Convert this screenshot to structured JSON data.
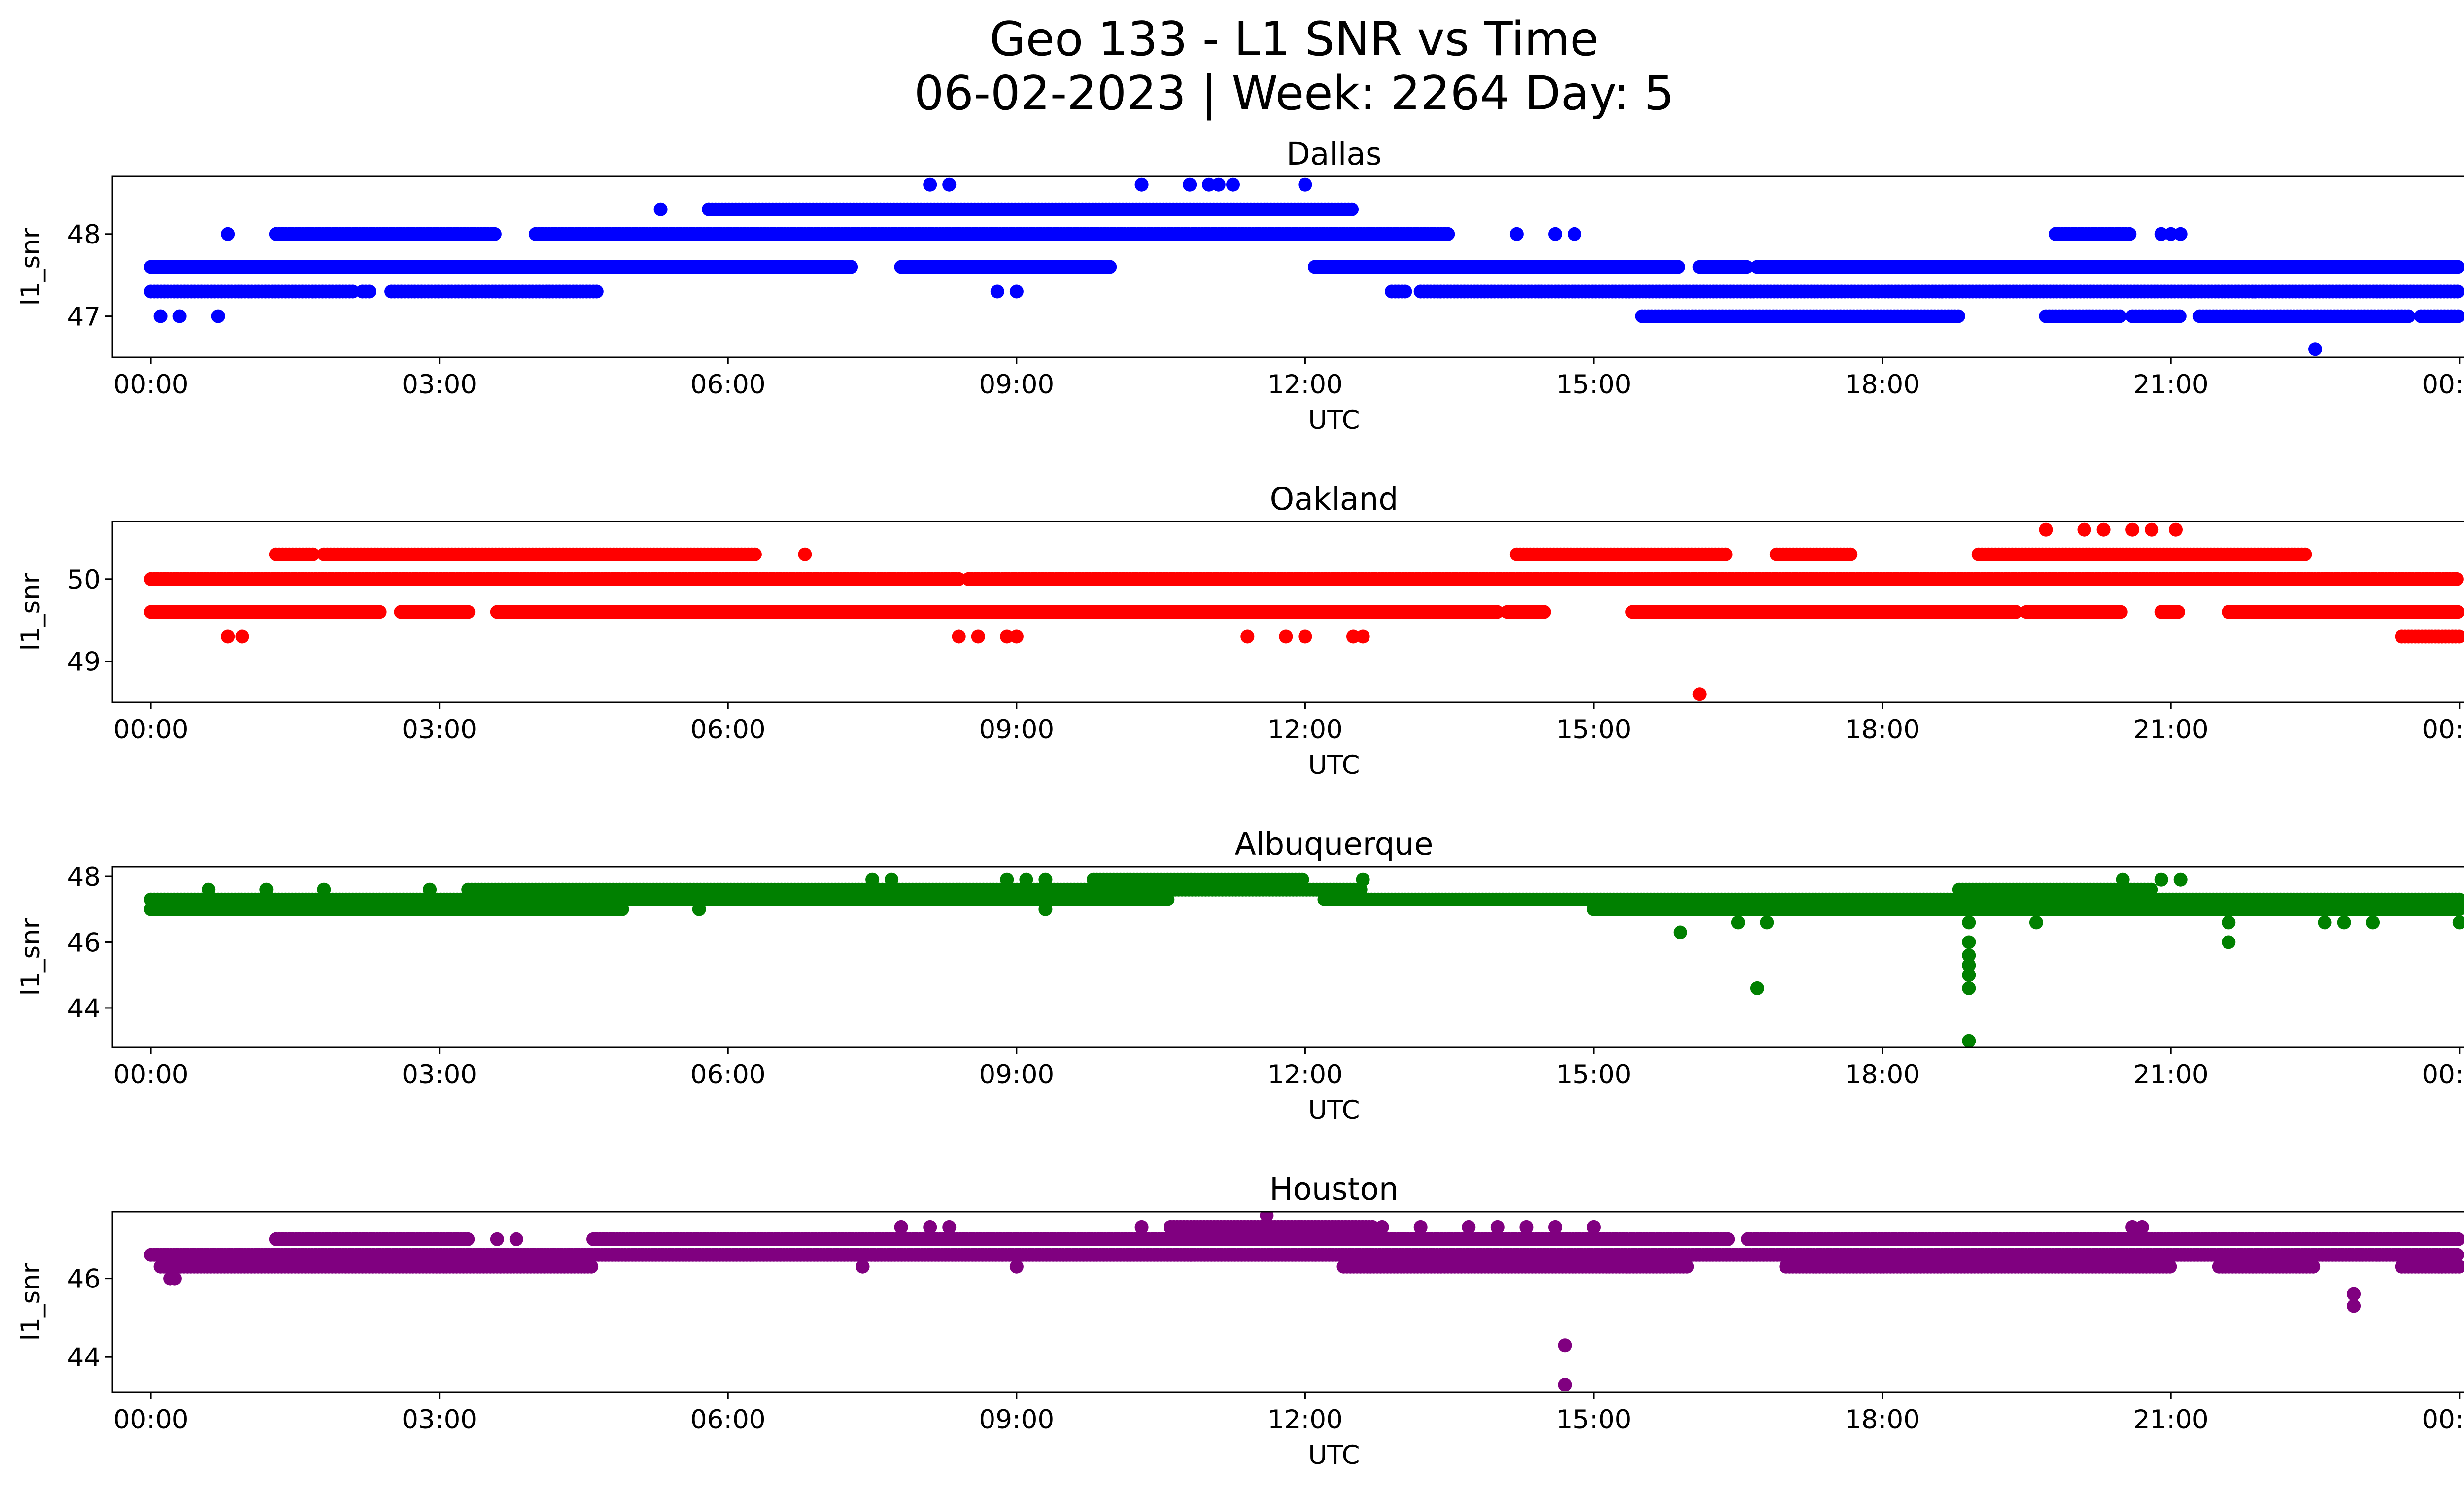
{
  "title_line1": "Geo 133 - L1 SNR vs Time",
  "title_line2": "06-02-2023 | Week: 2264 Day: 5",
  "chart_data": [
    {
      "type": "scatter",
      "title": "Dallas",
      "xlabel": "UTC",
      "ylabel": "l1_snr",
      "color": "#0000ff",
      "xlim": [
        -0.4,
        25.0
      ],
      "ylim": [
        46.5,
        48.7
      ],
      "xticks": [
        0,
        3,
        6,
        9,
        12,
        15,
        18,
        21,
        24
      ],
      "xtick_labels": [
        "00:00",
        "03:00",
        "06:00",
        "09:00",
        "12:00",
        "15:00",
        "18:00",
        "21:00",
        "00:00"
      ],
      "yticks": [
        47,
        48
      ],
      "ytick_labels": [
        "47",
        "48"
      ],
      "bands": [
        {
          "y": 47.3,
          "segments": [
            [
              0,
              2.1
            ],
            [
              2.2,
              2.3
            ],
            [
              2.5,
              4.65
            ],
            [
              12.9,
              13.05
            ],
            [
              13.2,
              24
            ]
          ]
        },
        {
          "y": 47.6,
          "segments": [
            [
              0,
              7.3
            ],
            [
              7.8,
              10.0
            ],
            [
              12.1,
              15.9
            ],
            [
              16.1,
              16.6
            ],
            [
              16.7,
              24
            ]
          ]
        },
        {
          "y": 48.0,
          "segments": [
            [
              1.3,
              3.6
            ],
            [
              4.0,
              13.5
            ],
            [
              19.8,
              20.6
            ]
          ]
        },
        {
          "y": 48.3,
          "segments": [
            [
              5.8,
              12.5
            ]
          ]
        },
        {
          "y": 47.0,
          "segments": [
            [
              15.5,
              18.8
            ],
            [
              19.7,
              20.5
            ],
            [
              20.6,
              21.1
            ],
            [
              21.3,
              23.5
            ],
            [
              23.6,
              24
            ]
          ]
        }
      ],
      "points": [
        {
          "x": 0.1,
          "y": 47.0
        },
        {
          "x": 0.3,
          "y": 47.0
        },
        {
          "x": 0.7,
          "y": 47.0
        },
        {
          "x": 0.8,
          "y": 48.0
        },
        {
          "x": 5.3,
          "y": 48.3
        },
        {
          "x": 5.8,
          "y": 48.3
        },
        {
          "x": 8.1,
          "y": 48.6
        },
        {
          "x": 8.3,
          "y": 48.6
        },
        {
          "x": 10.3,
          "y": 48.6
        },
        {
          "x": 10.8,
          "y": 48.6
        },
        {
          "x": 11.0,
          "y": 48.6
        },
        {
          "x": 11.1,
          "y": 48.6
        },
        {
          "x": 11.25,
          "y": 48.6
        },
        {
          "x": 12.0,
          "y": 48.6
        },
        {
          "x": 8.8,
          "y": 47.3
        },
        {
          "x": 9.0,
          "y": 47.3
        },
        {
          "x": 14.2,
          "y": 48.0
        },
        {
          "x": 14.6,
          "y": 48.0
        },
        {
          "x": 14.8,
          "y": 48.0
        },
        {
          "x": 20.9,
          "y": 48.0
        },
        {
          "x": 21.0,
          "y": 48.0
        },
        {
          "x": 21.1,
          "y": 48.0
        },
        {
          "x": 22.5,
          "y": 46.6
        }
      ]
    },
    {
      "type": "scatter",
      "title": "Oakland",
      "xlabel": "UTC",
      "ylabel": "l1_snr",
      "color": "#ff0000",
      "xlim": [
        -0.4,
        25.0
      ],
      "ylim": [
        48.5,
        50.7
      ],
      "xticks": [
        0,
        3,
        6,
        9,
        12,
        15,
        18,
        21,
        24
      ],
      "xtick_labels": [
        "00:00",
        "03:00",
        "06:00",
        "09:00",
        "12:00",
        "15:00",
        "18:00",
        "21:00",
        "00:00"
      ],
      "yticks": [
        49,
        50
      ],
      "ytick_labels": [
        "49",
        "50"
      ],
      "bands": [
        {
          "y": 50.0,
          "segments": [
            [
              0,
              8.4
            ],
            [
              8.5,
              24
            ]
          ]
        },
        {
          "y": 49.6,
          "segments": [
            [
              0,
              2.4
            ],
            [
              2.6,
              3.3
            ],
            [
              3.6,
              14.0
            ],
            [
              14.1,
              14.5
            ],
            [
              15.4,
              19.4
            ],
            [
              19.5,
              20.5
            ],
            [
              20.9,
              21.1
            ],
            [
              21.6,
              24
            ]
          ]
        },
        {
          "y": 50.3,
          "segments": [
            [
              1.3,
              1.7
            ],
            [
              1.8,
              6.3
            ],
            [
              14.2,
              16.4
            ],
            [
              16.9,
              17.7
            ],
            [
              19.0,
              22.4
            ]
          ]
        },
        {
          "y": 49.3,
          "segments": [
            [
              23.4,
              24
            ]
          ]
        }
      ],
      "points": [
        {
          "x": 0.8,
          "y": 49.3
        },
        {
          "x": 0.95,
          "y": 49.3
        },
        {
          "x": 6.8,
          "y": 50.3
        },
        {
          "x": 8.4,
          "y": 49.3
        },
        {
          "x": 8.6,
          "y": 49.3
        },
        {
          "x": 8.9,
          "y": 49.3
        },
        {
          "x": 9.0,
          "y": 49.3
        },
        {
          "x": 11.4,
          "y": 49.3
        },
        {
          "x": 11.8,
          "y": 49.3
        },
        {
          "x": 12.0,
          "y": 49.3
        },
        {
          "x": 12.5,
          "y": 49.3
        },
        {
          "x": 12.6,
          "y": 49.3
        },
        {
          "x": 16.1,
          "y": 48.6
        },
        {
          "x": 19.7,
          "y": 50.6
        },
        {
          "x": 20.1,
          "y": 50.6
        },
        {
          "x": 20.3,
          "y": 50.6
        },
        {
          "x": 20.6,
          "y": 50.6
        },
        {
          "x": 20.8,
          "y": 50.6
        },
        {
          "x": 21.05,
          "y": 50.6
        }
      ]
    },
    {
      "type": "scatter",
      "title": "Albuquerque",
      "xlabel": "UTC",
      "ylabel": "l1_snr",
      "color": "#008000",
      "xlim": [
        -0.4,
        25.0
      ],
      "ylim": [
        42.8,
        48.3
      ],
      "xticks": [
        0,
        3,
        6,
        9,
        12,
        15,
        18,
        21,
        24
      ],
      "xtick_labels": [
        "00:00",
        "03:00",
        "06:00",
        "09:00",
        "12:00",
        "15:00",
        "18:00",
        "21:00",
        "00:00"
      ],
      "yticks": [
        44,
        46,
        48
      ],
      "ytick_labels": [
        "44",
        "46",
        "48"
      ],
      "bands": [
        {
          "y": 47.0,
          "segments": [
            [
              0,
              4.9
            ],
            [
              15.0,
              24
            ]
          ]
        },
        {
          "y": 47.3,
          "segments": [
            [
              0,
              10.6
            ],
            [
              12.2,
              24
            ]
          ]
        },
        {
          "y": 47.6,
          "segments": [
            [
              3.3,
              12.6
            ],
            [
              18.8,
              20.8
            ]
          ]
        },
        {
          "y": 47.9,
          "segments": [
            [
              9.8,
              12.0
            ]
          ]
        }
      ],
      "points": [
        {
          "x": 0.6,
          "y": 47.6
        },
        {
          "x": 1.2,
          "y": 47.6
        },
        {
          "x": 1.8,
          "y": 47.6
        },
        {
          "x": 2.9,
          "y": 47.6
        },
        {
          "x": 7.5,
          "y": 47.9
        },
        {
          "x": 7.7,
          "y": 47.9
        },
        {
          "x": 8.9,
          "y": 47.9
        },
        {
          "x": 9.1,
          "y": 47.9
        },
        {
          "x": 9.3,
          "y": 47.9
        },
        {
          "x": 12.6,
          "y": 47.9
        },
        {
          "x": 20.5,
          "y": 47.9
        },
        {
          "x": 20.9,
          "y": 47.9
        },
        {
          "x": 21.1,
          "y": 47.9
        },
        {
          "x": 5.7,
          "y": 47.0
        },
        {
          "x": 9.3,
          "y": 47.0
        },
        {
          "x": 10.5,
          "y": 47.3
        },
        {
          "x": 15.9,
          "y": 46.3
        },
        {
          "x": 16.5,
          "y": 46.6
        },
        {
          "x": 16.8,
          "y": 46.6
        },
        {
          "x": 16.7,
          "y": 44.6
        },
        {
          "x": 18.9,
          "y": 46.6
        },
        {
          "x": 18.9,
          "y": 46.0
        },
        {
          "x": 18.9,
          "y": 45.6
        },
        {
          "x": 18.9,
          "y": 45.3
        },
        {
          "x": 18.9,
          "y": 45.0
        },
        {
          "x": 18.9,
          "y": 44.6
        },
        {
          "x": 18.9,
          "y": 43.0
        },
        {
          "x": 19.6,
          "y": 46.6
        },
        {
          "x": 21.6,
          "y": 46.6
        },
        {
          "x": 21.6,
          "y": 46.0
        },
        {
          "x": 22.6,
          "y": 46.6
        },
        {
          "x": 22.8,
          "y": 46.6
        },
        {
          "x": 23.1,
          "y": 46.6
        },
        {
          "x": 24.0,
          "y": 46.6
        }
      ]
    },
    {
      "type": "scatter",
      "title": "Houston",
      "xlabel": "UTC",
      "ylabel": "l1_snr",
      "color": "#800080",
      "xlim": [
        -0.4,
        25.0
      ],
      "ylim": [
        43.1,
        47.7
      ],
      "xticks": [
        0,
        3,
        6,
        9,
        12,
        15,
        18,
        21,
        24
      ],
      "xtick_labels": [
        "00:00",
        "03:00",
        "06:00",
        "09:00",
        "12:00",
        "15:00",
        "18:00",
        "21:00",
        "00:00"
      ],
      "yticks": [
        44,
        46
      ],
      "ytick_labels": [
        "44",
        "46"
      ],
      "bands": [
        {
          "y": 46.3,
          "segments": [
            [
              0.1,
              4.6
            ],
            [
              12.4,
              16.0
            ],
            [
              17.0,
              21.0
            ],
            [
              21.5,
              22.5
            ],
            [
              23.4,
              24
            ]
          ]
        },
        {
          "y": 46.6,
          "segments": [
            [
              0,
              24
            ]
          ]
        },
        {
          "y": 47.0,
          "segments": [
            [
              1.3,
              3.3
            ],
            [
              4.6,
              16.4
            ],
            [
              16.6,
              24
            ]
          ]
        },
        {
          "y": 47.3,
          "segments": [
            [
              10.6,
              12.7
            ]
          ]
        }
      ],
      "points": [
        {
          "x": 0.2,
          "y": 46.0
        },
        {
          "x": 0.25,
          "y": 46.0
        },
        {
          "x": 3.6,
          "y": 47.0
        },
        {
          "x": 3.8,
          "y": 47.0
        },
        {
          "x": 7.4,
          "y": 46.3
        },
        {
          "x": 7.8,
          "y": 47.3
        },
        {
          "x": 8.1,
          "y": 47.3
        },
        {
          "x": 8.3,
          "y": 47.3
        },
        {
          "x": 9.0,
          "y": 46.3
        },
        {
          "x": 10.3,
          "y": 47.3
        },
        {
          "x": 11.6,
          "y": 47.6
        },
        {
          "x": 12.8,
          "y": 47.3
        },
        {
          "x": 13.2,
          "y": 47.3
        },
        {
          "x": 13.7,
          "y": 47.3
        },
        {
          "x": 14.0,
          "y": 47.3
        },
        {
          "x": 14.3,
          "y": 47.3
        },
        {
          "x": 14.6,
          "y": 47.3
        },
        {
          "x": 15.0,
          "y": 47.3
        },
        {
          "x": 14.7,
          "y": 44.3
        },
        {
          "x": 14.7,
          "y": 43.3
        },
        {
          "x": 20.6,
          "y": 47.3
        },
        {
          "x": 20.7,
          "y": 47.3
        },
        {
          "x": 22.9,
          "y": 45.6
        },
        {
          "x": 22.9,
          "y": 45.3
        }
      ]
    }
  ]
}
